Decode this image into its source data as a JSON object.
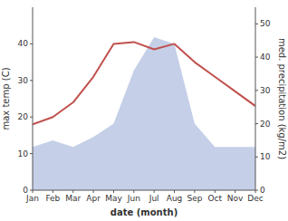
{
  "chart_data": {
    "type": "line",
    "xlabel": "date (month)",
    "ylabel": "max temp (C)",
    "y2label": "med. precipitation (kg/m2)",
    "categories": [
      "Jan",
      "Feb",
      "Mar",
      "Apr",
      "May",
      "Jun",
      "Jul",
      "Aug",
      "Sep",
      "Oct",
      "Nov",
      "Dec"
    ],
    "series": [
      {
        "type": "area",
        "axis": "y2",
        "color": "#c5cfe8",
        "values": [
          13,
          15,
          13,
          16,
          20,
          36,
          46,
          44,
          20,
          13,
          13,
          13
        ]
      },
      {
        "type": "line",
        "color": "#c0504d",
        "values": [
          18,
          20,
          24,
          31,
          40,
          40.5,
          38.5,
          40,
          35,
          31,
          27,
          23
        ]
      }
    ],
    "ylim": [
      0,
      50
    ],
    "yticks": [
      0,
      10,
      20,
      30,
      40
    ],
    "y2lim": [
      0,
      55
    ],
    "y2ticks": [
      0,
      10,
      20,
      30,
      40,
      50
    ],
    "grid": false
  }
}
